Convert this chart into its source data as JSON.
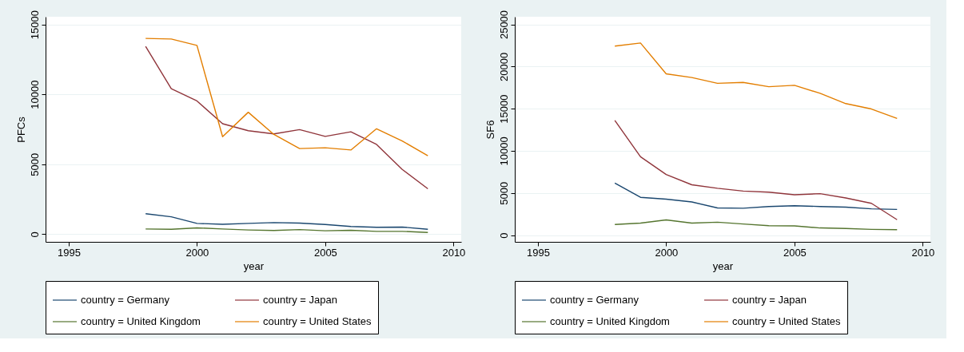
{
  "chart_data": [
    {
      "type": "line",
      "xlabel": "year",
      "ylabel": "PFCs",
      "x": [
        1998,
        1999,
        2000,
        2001,
        2002,
        2003,
        2004,
        2005,
        2006,
        2007,
        2008,
        2009
      ],
      "xlim": [
        1994.1,
        2010.3
      ],
      "xticks": [
        1995,
        2000,
        2005,
        2010
      ],
      "ylim": [
        -550,
        15550
      ],
      "yticks": [
        0,
        5000,
        10000,
        15000
      ],
      "grid": "y",
      "legend": "bottom",
      "series": [
        {
          "name": "country = Germany",
          "color": "#1a476f",
          "values": [
            1460,
            1240,
            770,
            710,
            770,
            830,
            790,
            690,
            550,
            490,
            510,
            350
          ]
        },
        {
          "name": "country = Japan",
          "color": "#90353b",
          "values": [
            13430,
            10400,
            9530,
            7900,
            7400,
            7170,
            7480,
            6990,
            7320,
            6420,
            4630,
            3250
          ]
        },
        {
          "name": "country = United Kingdom",
          "color": "#55752f",
          "values": [
            370,
            350,
            450,
            370,
            300,
            260,
            330,
            240,
            280,
            200,
            200,
            120
          ]
        },
        {
          "name": "country = United States",
          "color": "#e37e00",
          "values": [
            14000,
            13960,
            13500,
            6970,
            8720,
            7130,
            6120,
            6180,
            6020,
            7540,
            6670,
            5610
          ]
        }
      ]
    },
    {
      "type": "line",
      "xlabel": "year",
      "ylabel": "SF6",
      "x": [
        1998,
        1999,
        2000,
        2001,
        2002,
        2003,
        2004,
        2005,
        2006,
        2007,
        2008,
        2009
      ],
      "xlim": [
        1994.1,
        2010.3
      ],
      "xticks": [
        1995,
        2000,
        2005,
        2010
      ],
      "ylim": [
        -800,
        25900
      ],
      "yticks": [
        0,
        5000,
        10000,
        15000,
        20000,
        25000
      ],
      "grid": "y",
      "legend": "bottom",
      "series": [
        {
          "name": "country = Germany",
          "color": "#1a476f",
          "values": [
            6170,
            4480,
            4270,
            3930,
            3220,
            3190,
            3390,
            3490,
            3390,
            3320,
            3120,
            3050
          ]
        },
        {
          "name": "country = Japan",
          "color": "#90353b",
          "values": [
            13600,
            9290,
            7190,
            5970,
            5560,
            5220,
            5090,
            4780,
            4920,
            4410,
            3770,
            1830
          ]
        },
        {
          "name": "country = United Kingdom",
          "color": "#55752f",
          "values": [
            1260,
            1420,
            1800,
            1420,
            1530,
            1320,
            1120,
            1090,
            850,
            780,
            680,
            640
          ]
        },
        {
          "name": "country = United States",
          "color": "#e37e00",
          "values": [
            22420,
            22790,
            19130,
            18690,
            18010,
            18110,
            17600,
            17770,
            16820,
            15600,
            14960,
            13840
          ]
        }
      ]
    }
  ]
}
